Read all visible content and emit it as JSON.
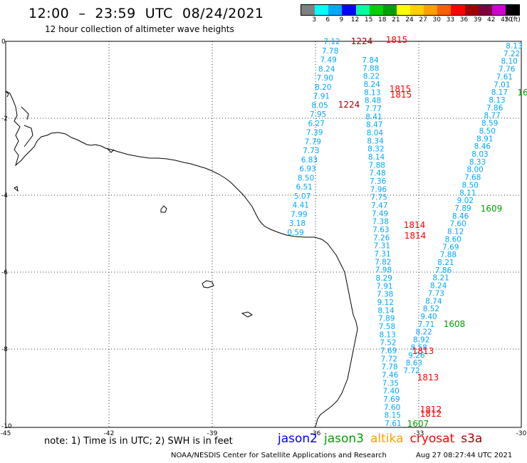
{
  "title": "12:00  –  23:59  UTC  08/24/2021",
  "subtitle": "12 hour collection of altimeter wave heights",
  "colorbar": {
    "unit": "(ft)",
    "ticks": [
      "3",
      "6",
      "9",
      "12",
      "15",
      "18",
      "21",
      "24",
      "27",
      "30",
      "33",
      "36",
      "39",
      "42",
      "45",
      "70"
    ],
    "colors": [
      "#808080",
      "#00ffff",
      "#00a8ff",
      "#0000ff",
      "#00ffa0",
      "#00d000",
      "#00a000",
      "#ffff00",
      "#ffd000",
      "#ffa000",
      "#ff6000",
      "#ff0000",
      "#a00000",
      "#800040",
      "#d000d0",
      "#000000"
    ]
  },
  "axes": {
    "x_ticks": [
      "-45",
      "-42",
      "-39",
      "-36",
      "-33",
      "-30"
    ],
    "y_ticks": [
      "0",
      "-2",
      "-4",
      "-6",
      "-8",
      "-10"
    ]
  },
  "tracks": {
    "jason2": {
      "color": "#00a8ff",
      "values": [
        "7.12",
        "7.78",
        "7.49",
        "8.24",
        "7.90",
        "8.20",
        "7.91",
        "8.05",
        "7.95",
        "6.27",
        "7.39",
        "7.79",
        "7.73",
        "6.83",
        "6.93",
        "8.50",
        "6.51",
        "5.07",
        "4.41",
        "7.99",
        "3.18",
        "0.59"
      ]
    },
    "jason3_mid": {
      "color": "#00a8ff",
      "values": [
        "7.84",
        "7.88",
        "8.22",
        "8.24",
        "8.13",
        "8.48",
        "7.77",
        "8.41",
        "8.47",
        "8.04",
        "8.34",
        "8.32",
        "8.14",
        "7.88",
        "7.48",
        "7.36",
        "7.96",
        "7.75",
        "7.47",
        "7.49",
        "7.38",
        "7.63",
        "7.26",
        "7.31",
        "7.31",
        "7.82",
        "7.98",
        "8.29",
        "7.91",
        "7.38",
        "9.12",
        "8.14",
        "7.89",
        "7.58",
        "8.13",
        "7.52",
        "7.69",
        "7.72",
        "7.78",
        "7.46",
        "7.35",
        "7.40",
        "7.69",
        "7.60",
        "8.15",
        "7.61"
      ]
    },
    "cryosat": {
      "color": "#00a8ff",
      "values": [
        "8.13",
        "7.22",
        "8.10",
        "7.76",
        "7.61",
        "7.01",
        "8.17",
        "8.13",
        "7.86",
        "8.77",
        "8.59",
        "8.50",
        "8.91",
        "8.46",
        "8.03",
        "8.33",
        "8.00",
        "7.68",
        "8.50",
        "8.11",
        "9.02",
        "7.89",
        "8.46",
        "7.60",
        "8.12",
        "8.60",
        "7.69",
        "7.88",
        "8.21",
        "7.86",
        "8.21",
        "8.24",
        "7.73",
        "8.74",
        "8.52",
        "9.40",
        "7.71",
        "8.22",
        "8.92",
        "8.58",
        "9.26",
        "8.63",
        "7.72"
      ]
    }
  },
  "time_labels": [
    {
      "text": "1224",
      "color": "#a00000"
    },
    {
      "text": "1815",
      "color": "#ff0000"
    },
    {
      "text": "1815",
      "color": "#ff0000"
    },
    {
      "text": "1815",
      "color": "#ff0000"
    },
    {
      "text": "1224",
      "color": "#a00000"
    },
    {
      "text": "16",
      "color": "#00a000"
    },
    {
      "text": "1609",
      "color": "#00a000"
    },
    {
      "text": "1814",
      "color": "#ff0000"
    },
    {
      "text": "1814",
      "color": "#ff0000"
    },
    {
      "text": "1608",
      "color": "#00a000"
    },
    {
      "text": "1813",
      "color": "#ff0000"
    },
    {
      "text": "1813",
      "color": "#ff0000"
    },
    {
      "text": "1812",
      "color": "#ff0000"
    },
    {
      "text": "1812",
      "color": "#ff0000"
    },
    {
      "text": "1607",
      "color": "#00a000"
    }
  ],
  "note": "note: 1) Time is in UTC; 2) SWH is in feet",
  "legend": [
    {
      "name": "jason2",
      "color": "#0000ff"
    },
    {
      "name": "jason3",
      "color": "#00a000"
    },
    {
      "name": "altika",
      "color": "#ffa000"
    },
    {
      "name": "cryosat",
      "color": "#ff0000"
    },
    {
      "name": "s3a",
      "color": "#a00000"
    }
  ],
  "footer": {
    "credit": "NOAA/NESDIS Center for Satellite Applications and Research",
    "timestamp": "Aug 27 08:27:44 UTC 2021"
  }
}
